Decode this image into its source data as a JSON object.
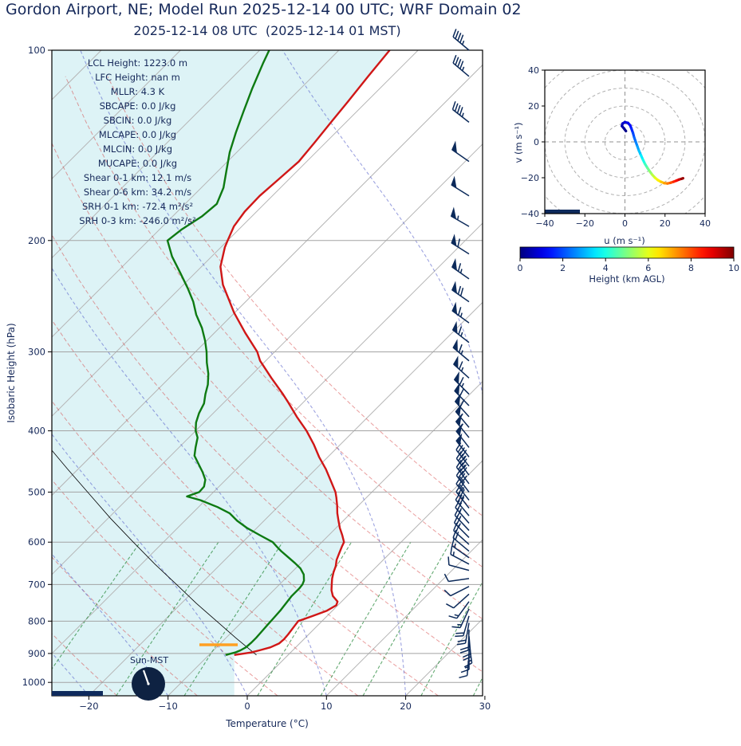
{
  "page": {
    "suptitle": "Gordon Airport, NE; Model Run 2025-12-14 00 UTC; WRF Domain 02",
    "subtitle": "2025-12-14 08 UTC  (2025-12-14 01 MST)",
    "text_color": "#16295a"
  },
  "chart_data": [
    {
      "type": "line",
      "subtype": "skewT_logP_sounding",
      "title": "2025-12-14 08 UTC  (2025-12-14 01 MST)",
      "xlabel": "Temperature (°C)",
      "ylabel": "Isobaric Height (hPa)",
      "x_ticks_c": [
        -20,
        -10,
        0,
        10,
        20,
        30
      ],
      "y_ticks_hpa": [
        100,
        200,
        300,
        400,
        500,
        600,
        700,
        800,
        900,
        1000
      ],
      "pressure_lim_hpa": [
        100,
        1050
      ],
      "temp_lim_at_bottom_c": [
        -24.7,
        29.7
      ],
      "skew_deg": 45,
      "isotherms_c": {
        "start": -110,
        "end": 40,
        "step": 10
      },
      "dry_adiabats_c": {
        "start": -40,
        "end": 60,
        "step": 10
      },
      "moist_adiabats_c": {
        "start": -60,
        "end": 40,
        "step": 10
      },
      "mixing_ratios_g_kg": [
        0.4,
        1,
        2,
        4,
        7,
        10,
        16,
        24,
        32
      ],
      "mixing_line_top_hpa": 600,
      "temperature_profile_p_t": [
        [
          905,
          -6.8
        ],
        [
          897,
          -5.0
        ],
        [
          890,
          -4.2
        ],
        [
          880,
          -3.2
        ],
        [
          868,
          -2.6
        ],
        [
          855,
          -2.5
        ],
        [
          840,
          -2.6
        ],
        [
          820,
          -2.8
        ],
        [
          800,
          -3.0
        ],
        [
          785,
          -1.8
        ],
        [
          770,
          -0.7
        ],
        [
          755,
          -0.2
        ],
        [
          745,
          -0.5
        ],
        [
          730,
          -1.8
        ],
        [
          715,
          -2.7
        ],
        [
          700,
          -3.4
        ],
        [
          685,
          -4.1
        ],
        [
          670,
          -4.7
        ],
        [
          655,
          -5.2
        ],
        [
          640,
          -5.9
        ],
        [
          625,
          -6.4
        ],
        [
          610,
          -6.9
        ],
        [
          600,
          -7.2
        ],
        [
          585,
          -8.3
        ],
        [
          570,
          -9.5
        ],
        [
          555,
          -10.6
        ],
        [
          540,
          -11.7
        ],
        [
          525,
          -12.7
        ],
        [
          510,
          -13.8
        ],
        [
          500,
          -14.6
        ],
        [
          480,
          -16.6
        ],
        [
          460,
          -18.7
        ],
        [
          440,
          -21.1
        ],
        [
          420,
          -23.4
        ],
        [
          400,
          -26.0
        ],
        [
          380,
          -29.0
        ],
        [
          360,
          -32.0
        ],
        [
          350,
          -33.6
        ],
        [
          330,
          -37.1
        ],
        [
          310,
          -40.7
        ],
        [
          300,
          -42.2
        ],
        [
          280,
          -46.1
        ],
        [
          260,
          -50.1
        ],
        [
          250,
          -52.0
        ],
        [
          235,
          -55.0
        ],
        [
          220,
          -57.6
        ],
        [
          205,
          -59.5
        ],
        [
          200,
          -60.0
        ],
        [
          190,
          -61.0
        ],
        [
          180,
          -61.5
        ],
        [
          170,
          -61.6
        ],
        [
          160,
          -61.3
        ],
        [
          150,
          -61.0
        ],
        [
          140,
          -61.4
        ],
        [
          130,
          -61.9
        ],
        [
          120,
          -62.4
        ],
        [
          110,
          -63.0
        ],
        [
          100,
          -63.6
        ]
      ],
      "dewpoint_profile_p_td": [
        [
          905,
          -7.9
        ],
        [
          897,
          -7.0
        ],
        [
          890,
          -6.6
        ],
        [
          880,
          -6.3
        ],
        [
          865,
          -6.2
        ],
        [
          850,
          -6.2
        ],
        [
          830,
          -6.3
        ],
        [
          810,
          -6.4
        ],
        [
          790,
          -6.5
        ],
        [
          770,
          -6.6
        ],
        [
          750,
          -6.8
        ],
        [
          730,
          -7.0
        ],
        [
          710,
          -7.0
        ],
        [
          700,
          -7.1
        ],
        [
          690,
          -7.4
        ],
        [
          675,
          -8.2
        ],
        [
          660,
          -9.4
        ],
        [
          648,
          -10.7
        ],
        [
          635,
          -12.2
        ],
        [
          620,
          -14.0
        ],
        [
          610,
          -15.1
        ],
        [
          600,
          -16.2
        ],
        [
          585,
          -18.7
        ],
        [
          570,
          -21.2
        ],
        [
          555,
          -23.4
        ],
        [
          540,
          -25.3
        ],
        [
          528,
          -27.6
        ],
        [
          515,
          -30.6
        ],
        [
          508,
          -32.8
        ],
        [
          500,
          -31.8
        ],
        [
          490,
          -31.9
        ],
        [
          478,
          -32.6
        ],
        [
          465,
          -33.9
        ],
        [
          450,
          -35.6
        ],
        [
          438,
          -37.0
        ],
        [
          425,
          -37.9
        ],
        [
          410,
          -38.9
        ],
        [
          400,
          -40.0
        ],
        [
          388,
          -41.0
        ],
        [
          375,
          -41.8
        ],
        [
          362,
          -42.4
        ],
        [
          350,
          -43.4
        ],
        [
          338,
          -44.3
        ],
        [
          325,
          -45.6
        ],
        [
          312,
          -47.2
        ],
        [
          300,
          -48.6
        ],
        [
          288,
          -50.2
        ],
        [
          275,
          -52.2
        ],
        [
          262,
          -54.6
        ],
        [
          250,
          -56.6
        ],
        [
          238,
          -59.0
        ],
        [
          225,
          -61.9
        ],
        [
          212,
          -65.0
        ],
        [
          200,
          -67.6
        ],
        [
          192,
          -67.2
        ],
        [
          183,
          -66.3
        ],
        [
          175,
          -66.0
        ],
        [
          165,
          -67.2
        ],
        [
          155,
          -69.0
        ],
        [
          145,
          -70.9
        ],
        [
          135,
          -72.6
        ],
        [
          125,
          -74.3
        ],
        [
          115,
          -76.1
        ],
        [
          105,
          -77.9
        ],
        [
          100,
          -78.8
        ]
      ],
      "parcel_profile_p_t": [
        [
          905,
          -4.0
        ],
        [
          850,
          -8.8
        ],
        [
          800,
          -13.3
        ],
        [
          750,
          -18.1
        ],
        [
          700,
          -23.0
        ],
        [
          650,
          -28.3
        ],
        [
          600,
          -33.8
        ],
        [
          550,
          -39.7
        ],
        [
          500,
          -45.9
        ],
        [
          460,
          -51.3
        ],
        [
          430,
          -55.6
        ]
      ],
      "lcl_marker": {
        "pressure_hpa": 872,
        "color": "#ffa022"
      },
      "wind_barbs_p_dir_kt": [
        [
          905,
          185,
          12
        ],
        [
          885,
          180,
          15
        ],
        [
          865,
          172,
          17
        ],
        [
          845,
          175,
          19
        ],
        [
          825,
          182,
          21
        ],
        [
          805,
          190,
          20
        ],
        [
          785,
          196,
          19
        ],
        [
          765,
          205,
          16
        ],
        [
          745,
          216,
          13
        ],
        [
          725,
          228,
          11
        ],
        [
          705,
          243,
          10
        ],
        [
          685,
          262,
          10
        ],
        [
          665,
          285,
          12
        ],
        [
          650,
          298,
          15
        ],
        [
          635,
          305,
          17
        ],
        [
          620,
          310,
          19
        ],
        [
          605,
          312,
          21
        ],
        [
          590,
          315,
          23
        ],
        [
          575,
          317,
          25
        ],
        [
          560,
          319,
          27
        ],
        [
          545,
          320,
          30
        ],
        [
          530,
          322,
          34
        ],
        [
          515,
          322,
          36
        ],
        [
          500,
          323,
          38
        ],
        [
          485,
          323,
          41
        ],
        [
          470,
          323,
          43
        ],
        [
          455,
          322,
          46
        ],
        [
          440,
          322,
          49
        ],
        [
          425,
          322,
          51
        ],
        [
          410,
          321,
          54
        ],
        [
          395,
          320,
          57
        ],
        [
          380,
          318,
          60
        ],
        [
          365,
          316,
          62
        ],
        [
          350,
          315,
          63
        ],
        [
          330,
          312,
          64
        ],
        [
          310,
          310,
          65
        ],
        [
          290,
          308,
          66
        ],
        [
          270,
          306,
          67
        ],
        [
          250,
          305,
          68
        ],
        [
          230,
          305,
          64
        ],
        [
          210,
          302,
          58
        ],
        [
          190,
          300,
          53
        ],
        [
          170,
          302,
          50
        ],
        [
          150,
          305,
          49
        ],
        [
          130,
          308,
          46
        ],
        [
          110,
          310,
          45
        ],
        [
          100,
          310,
          44
        ]
      ],
      "stats_lines": [
        "LCL Height: 1223.0 m",
        "LFC Height: nan m",
        "MLLR: 4.3 K",
        "SBCAPE: 0.0 J/kg",
        "SBCIN: 0.0 J/kg",
        "MLCAPE: 0.0 J/kg",
        "MLCIN: 0.0 J/kg",
        "MUCAPE: 0.0 J/kg",
        "Shear 0-1 km: 12.1 m/s",
        "Shear 0-6 km: 34.2 m/s",
        "SRH 0-1 km: -72.4 m²/s²",
        "SRH 0-3 km: -246.0 m²/s²"
      ],
      "sun_label": "Sun-MST",
      "colors": {
        "temperature": "#d01717",
        "dewpoint": "#0e7a12",
        "parcel": "#000000",
        "fill": "rgba(170,224,233,0.40)",
        "isotherm": "#b5b5b5",
        "pressure_line": "#a3a3a3",
        "dry_adiabat": "rgba(213,62,62,0.50)",
        "moist_adiabat": "rgba(92,102,204,0.60)",
        "mixing_line": "rgba(34,134,54,0.70)",
        "barb": "#0c2a5a",
        "marker_bar": "#0e2a5c",
        "clock": "#0e2242"
      }
    },
    {
      "type": "line",
      "subtype": "hodograph",
      "xlabel": "u (m s⁻¹)",
      "ylabel": "v (m s⁻¹)",
      "x_ticks": [
        -40,
        -20,
        0,
        20,
        40
      ],
      "y_ticks": [
        -40,
        -20,
        0,
        20,
        40
      ],
      "xlim": [
        -40,
        40
      ],
      "ylim": [
        -40,
        40
      ],
      "range_circles_ms": [
        10,
        20,
        30,
        40,
        50
      ],
      "trace_u_v_heightkm": [
        [
          0.5,
          6,
          0
        ],
        [
          -0.5,
          7.5,
          0.2
        ],
        [
          -1.5,
          8.8,
          0.4
        ],
        [
          -1.2,
          10.2,
          0.6
        ],
        [
          0,
          11,
          0.8
        ],
        [
          1.5,
          10.6,
          1
        ],
        [
          2.6,
          9.2,
          1.2
        ],
        [
          3.2,
          7.5,
          1.5
        ],
        [
          4,
          5,
          1.8
        ],
        [
          4.6,
          2.5,
          2.1
        ],
        [
          5.4,
          0,
          2.4
        ],
        [
          6.2,
          -2.5,
          2.7
        ],
        [
          7,
          -5,
          3
        ],
        [
          8,
          -7.5,
          3.4
        ],
        [
          9,
          -10,
          3.8
        ],
        [
          10,
          -12.3,
          4.2
        ],
        [
          11.2,
          -14.5,
          4.6
        ],
        [
          12.4,
          -16.5,
          5
        ],
        [
          13.6,
          -18.3,
          5.4
        ],
        [
          15,
          -20,
          5.8
        ],
        [
          16.4,
          -21.3,
          6.2
        ],
        [
          18,
          -22.3,
          6.6
        ],
        [
          19.6,
          -23,
          7
        ],
        [
          21.2,
          -23.2,
          7.4
        ],
        [
          22.8,
          -22.8,
          7.8
        ],
        [
          24.3,
          -22.2,
          8.2
        ],
        [
          25.7,
          -21.6,
          8.6
        ],
        [
          27,
          -21,
          9
        ],
        [
          28.2,
          -20.6,
          9.5
        ],
        [
          29,
          -20.3,
          10
        ]
      ],
      "colorbar": {
        "label": "Height (km AGL)",
        "ticks": [
          0,
          2,
          4,
          6,
          8,
          10
        ],
        "min": 0,
        "max": 10,
        "colormap": "jet"
      }
    }
  ]
}
